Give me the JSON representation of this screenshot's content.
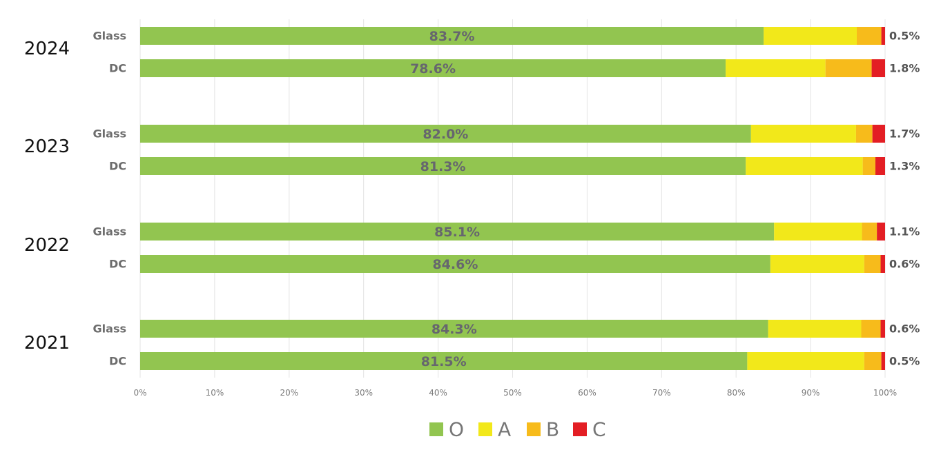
{
  "chart_data": {
    "type": "bar",
    "orientation": "horizontal",
    "stacked": true,
    "xlim": [
      0,
      100
    ],
    "xticks": [
      "0%",
      "10%",
      "20%",
      "30%",
      "40%",
      "50%",
      "60%",
      "70%",
      "80%",
      "90%",
      "100%"
    ],
    "grid": "vertical",
    "legend_position": "bottom",
    "series": [
      {
        "name": "O",
        "color": "#92c550"
      },
      {
        "name": "A",
        "color": "#f2e81a"
      },
      {
        "name": "B",
        "color": "#f7bb1b"
      },
      {
        "name": "C",
        "color": "#e31e24"
      }
    ],
    "groups": [
      {
        "year": "2024",
        "rows": [
          {
            "category": "Glass",
            "values": [
              83.7,
              12.5,
              3.3,
              0.5
            ],
            "label": "83.7%",
            "end_label": "0.5%"
          },
          {
            "category": "DC",
            "values": [
              78.6,
              13.4,
              6.2,
              1.8
            ],
            "label": "78.6%",
            "end_label": "1.8%"
          }
        ]
      },
      {
        "year": "2023",
        "rows": [
          {
            "category": "Glass",
            "values": [
              82.0,
              14.1,
              2.2,
              1.7
            ],
            "label": "82.0%",
            "end_label": "1.7%"
          },
          {
            "category": "DC",
            "values": [
              81.3,
              15.7,
              1.7,
              1.3
            ],
            "label": "81.3%",
            "end_label": "1.3%"
          }
        ]
      },
      {
        "year": "2022",
        "rows": [
          {
            "category": "Glass",
            "values": [
              85.1,
              11.8,
              2.0,
              1.1
            ],
            "label": "85.1%",
            "end_label": "1.1%"
          },
          {
            "category": "DC",
            "values": [
              84.6,
              12.6,
              2.2,
              0.6
            ],
            "label": "84.6%",
            "end_label": "0.6%"
          }
        ]
      },
      {
        "year": "2021",
        "rows": [
          {
            "category": "Glass",
            "values": [
              84.3,
              12.5,
              2.6,
              0.6
            ],
            "label": "84.3%",
            "end_label": "0.6%"
          },
          {
            "category": "DC",
            "values": [
              81.5,
              15.7,
              2.3,
              0.5
            ],
            "label": "81.5%",
            "end_label": "0.5%"
          }
        ]
      }
    ]
  }
}
